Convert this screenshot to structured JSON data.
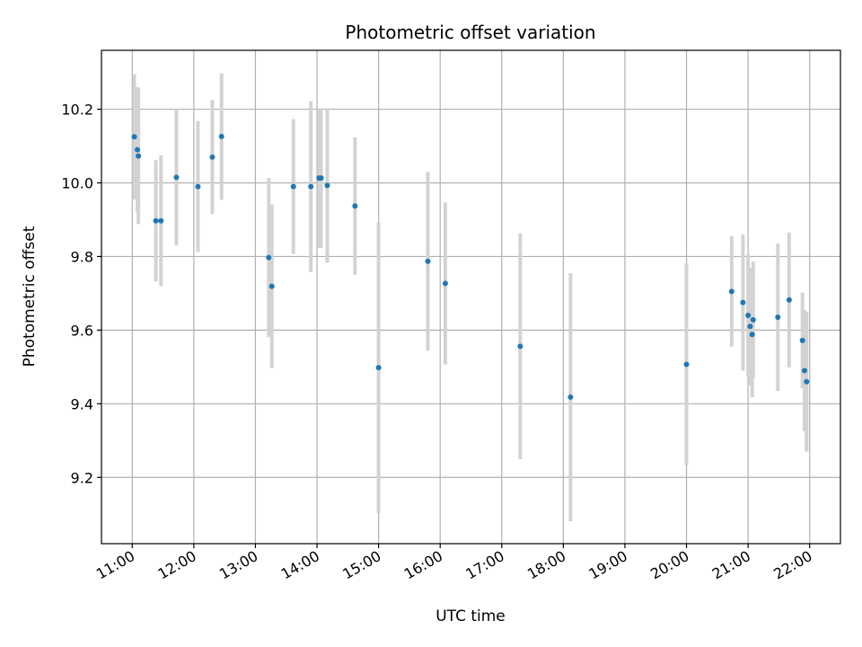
{
  "chart_data": {
    "type": "scatter",
    "title": "Photometric offset variation",
    "xlabel": "UTC time",
    "ylabel": "Photometric offset",
    "x_ticks": [
      "11:00",
      "12:00",
      "13:00",
      "14:00",
      "15:00",
      "16:00",
      "17:00",
      "18:00",
      "19:00",
      "20:00",
      "21:00",
      "22:00"
    ],
    "y_ticks": [
      "9.2",
      "9.4",
      "9.6",
      "9.8",
      "10.0",
      "10.2"
    ],
    "xlim": [
      "10:30",
      "22:30"
    ],
    "ylim": [
      9.02,
      10.36
    ],
    "grid": true,
    "marker_color": "#1f77b4",
    "errorbar_color": "#d3d3d3",
    "points": [
      {
        "x": "11:02",
        "y": 10.125,
        "err": 0.17
      },
      {
        "x": "11:05",
        "y": 10.09,
        "err": 0.17
      },
      {
        "x": "11:06",
        "y": 10.073,
        "err": 0.185
      },
      {
        "x": "11:23",
        "y": 9.897,
        "err": 0.165
      },
      {
        "x": "11:28",
        "y": 9.897,
        "err": 0.178
      },
      {
        "x": "11:43",
        "y": 10.015,
        "err": 0.185
      },
      {
        "x": "12:04",
        "y": 9.99,
        "err": 0.178
      },
      {
        "x": "12:18",
        "y": 10.07,
        "err": 0.155
      },
      {
        "x": "12:27",
        "y": 10.126,
        "err": 0.172
      },
      {
        "x": "13:13",
        "y": 9.797,
        "err": 0.216
      },
      {
        "x": "13:16",
        "y": 9.719,
        "err": 0.222
      },
      {
        "x": "13:37",
        "y": 9.99,
        "err": 0.183
      },
      {
        "x": "13:54",
        "y": 9.99,
        "err": 0.232
      },
      {
        "x": "14:02",
        "y": 10.013,
        "err": 0.19
      },
      {
        "x": "14:04",
        "y": 10.013,
        "err": 0.19
      },
      {
        "x": "14:10",
        "y": 9.993,
        "err": 0.21
      },
      {
        "x": "14:37",
        "y": 9.937,
        "err": 0.187
      },
      {
        "x": "15:00",
        "y": 9.498,
        "err": 0.395
      },
      {
        "x": "15:48",
        "y": 9.787,
        "err": 0.243
      },
      {
        "x": "16:05",
        "y": 9.727,
        "err": 0.22
      },
      {
        "x": "17:18",
        "y": 9.556,
        "err": 0.307
      },
      {
        "x": "18:07",
        "y": 9.418,
        "err": 0.337
      },
      {
        "x": "20:00",
        "y": 9.507,
        "err": 0.275
      },
      {
        "x": "20:44",
        "y": 9.705,
        "err": 0.15
      },
      {
        "x": "20:55",
        "y": 9.675,
        "err": 0.185
      },
      {
        "x": "21:00",
        "y": 9.64,
        "err": 0.167
      },
      {
        "x": "21:02",
        "y": 9.61,
        "err": 0.16
      },
      {
        "x": "21:04",
        "y": 9.588,
        "err": 0.17
      },
      {
        "x": "21:05",
        "y": 9.628,
        "err": 0.158
      },
      {
        "x": "21:29",
        "y": 9.635,
        "err": 0.2
      },
      {
        "x": "21:40",
        "y": 9.682,
        "err": 0.183
      },
      {
        "x": "21:53",
        "y": 9.572,
        "err": 0.13
      },
      {
        "x": "21:55",
        "y": 9.49,
        "err": 0.165
      },
      {
        "x": "21:57",
        "y": 9.46,
        "err": 0.19
      }
    ]
  }
}
